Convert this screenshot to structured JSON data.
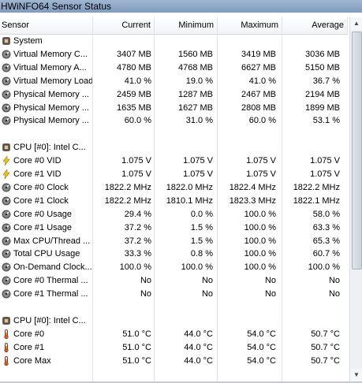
{
  "window": {
    "title": "HWiNFO64 Sensor Status"
  },
  "columns": {
    "sensor": "Sensor",
    "current": "Current",
    "minimum": "Minimum",
    "maximum": "Maximum",
    "average": "Average"
  },
  "icons": {
    "group": "hardware-chip-icon",
    "memory": "memory-disk-icon",
    "voltage": "lightning-bolt-icon",
    "clock": "gauge-icon",
    "temperature": "thermometer-icon"
  },
  "rows": [
    {
      "type": "group",
      "icon": "group",
      "name": "System"
    },
    {
      "type": "sensor",
      "icon": "memory",
      "name": "Virtual Memory C...",
      "current": "3407 MB",
      "minimum": "1560 MB",
      "maximum": "3419 MB",
      "average": "3036 MB"
    },
    {
      "type": "sensor",
      "icon": "memory",
      "name": "Virtual Memory A...",
      "current": "4780 MB",
      "minimum": "4768 MB",
      "maximum": "6627 MB",
      "average": "5150 MB"
    },
    {
      "type": "sensor",
      "icon": "memory",
      "name": "Virtual Memory Load",
      "current": "41.0 %",
      "minimum": "19.0 %",
      "maximum": "41.0 %",
      "average": "36.7 %"
    },
    {
      "type": "sensor",
      "icon": "memory",
      "name": "Physical Memory ...",
      "current": "2459 MB",
      "minimum": "1287 MB",
      "maximum": "2467 MB",
      "average": "2194 MB"
    },
    {
      "type": "sensor",
      "icon": "memory",
      "name": "Physical Memory ...",
      "current": "1635 MB",
      "minimum": "1627 MB",
      "maximum": "2808 MB",
      "average": "1899 MB"
    },
    {
      "type": "sensor",
      "icon": "memory",
      "name": "Physical Memory ...",
      "current": "60.0 %",
      "minimum": "31.0 %",
      "maximum": "60.0 %",
      "average": "53.1 %"
    },
    {
      "type": "blank"
    },
    {
      "type": "group",
      "icon": "group",
      "name": "CPU [#0]: Intel C..."
    },
    {
      "type": "sensor",
      "icon": "voltage",
      "name": "Core #0 VID",
      "current": "1.075 V",
      "minimum": "1.075 V",
      "maximum": "1.075 V",
      "average": "1.075 V"
    },
    {
      "type": "sensor",
      "icon": "voltage",
      "name": "Core #1 VID",
      "current": "1.075 V",
      "minimum": "1.075 V",
      "maximum": "1.075 V",
      "average": "1.075 V"
    },
    {
      "type": "sensor",
      "icon": "clock",
      "name": "Core #0 Clock",
      "current": "1822.2 MHz",
      "minimum": "1822.0 MHz",
      "maximum": "1822.4 MHz",
      "average": "1822.2 MHz"
    },
    {
      "type": "sensor",
      "icon": "clock",
      "name": "Core #1 Clock",
      "current": "1822.2 MHz",
      "minimum": "1810.1 MHz",
      "maximum": "1823.3 MHz",
      "average": "1822.1 MHz"
    },
    {
      "type": "sensor",
      "icon": "clock",
      "name": "Core #0 Usage",
      "current": "29.4 %",
      "minimum": "0.0 %",
      "maximum": "100.0 %",
      "average": "58.0 %"
    },
    {
      "type": "sensor",
      "icon": "clock",
      "name": "Core #1 Usage",
      "current": "37.2 %",
      "minimum": "1.5 %",
      "maximum": "100.0 %",
      "average": "63.3 %"
    },
    {
      "type": "sensor",
      "icon": "clock",
      "name": "Max CPU/Thread ...",
      "current": "37.2 %",
      "minimum": "1.5 %",
      "maximum": "100.0 %",
      "average": "65.3 %"
    },
    {
      "type": "sensor",
      "icon": "clock",
      "name": "Total CPU Usage",
      "current": "33.3 %",
      "minimum": "0.8 %",
      "maximum": "100.0 %",
      "average": "60.7 %"
    },
    {
      "type": "sensor",
      "icon": "clock",
      "name": "On-Demand Clock...",
      "current": "100.0 %",
      "minimum": "100.0 %",
      "maximum": "100.0 %",
      "average": "100.0 %"
    },
    {
      "type": "sensor",
      "icon": "clock",
      "name": "Core #0 Thermal ...",
      "current": "No",
      "minimum": "No",
      "maximum": "No",
      "average": "No"
    },
    {
      "type": "sensor",
      "icon": "clock",
      "name": "Core #1 Thermal ...",
      "current": "No",
      "minimum": "No",
      "maximum": "No",
      "average": "No"
    },
    {
      "type": "blank"
    },
    {
      "type": "group",
      "icon": "group",
      "name": "CPU [#0]: Intel C..."
    },
    {
      "type": "sensor",
      "icon": "temperature",
      "name": "Core #0",
      "current": "51.0 °C",
      "minimum": "44.0 °C",
      "maximum": "54.0 °C",
      "average": "50.7 °C"
    },
    {
      "type": "sensor",
      "icon": "temperature",
      "name": "Core #1",
      "current": "51.0 °C",
      "minimum": "44.0 °C",
      "maximum": "54.0 °C",
      "average": "50.7 °C"
    },
    {
      "type": "sensor",
      "icon": "temperature",
      "name": "Core Max",
      "current": "51.0 °C",
      "minimum": "44.0 °C",
      "maximum": "54.0 °C",
      "average": "50.7 °C"
    }
  ]
}
